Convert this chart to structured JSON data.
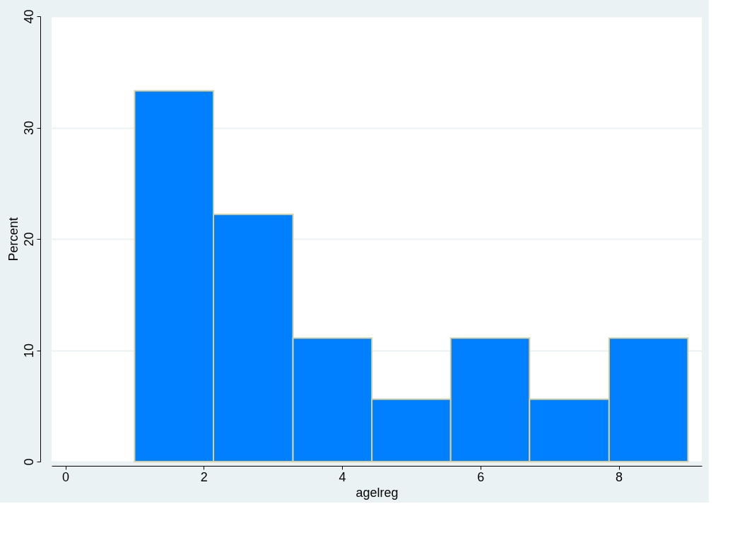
{
  "chart_data": {
    "type": "histogram",
    "xlabel": "agelreg",
    "ylabel": "Percent",
    "bins": [
      1,
      2.14,
      3.29,
      4.43,
      5.57,
      6.71,
      7.86,
      9
    ],
    "values": [
      33.3,
      22.2,
      11.1,
      5.6,
      11.1,
      5.6,
      11.1
    ],
    "color": "#0080ff",
    "xlim": [
      -0.2,
      9.2
    ],
    "xticks": [
      0,
      2,
      4,
      6,
      8
    ],
    "ylim": [
      0,
      40
    ],
    "yticks": [
      0,
      10,
      20,
      30,
      40
    ],
    "grid": "y"
  }
}
